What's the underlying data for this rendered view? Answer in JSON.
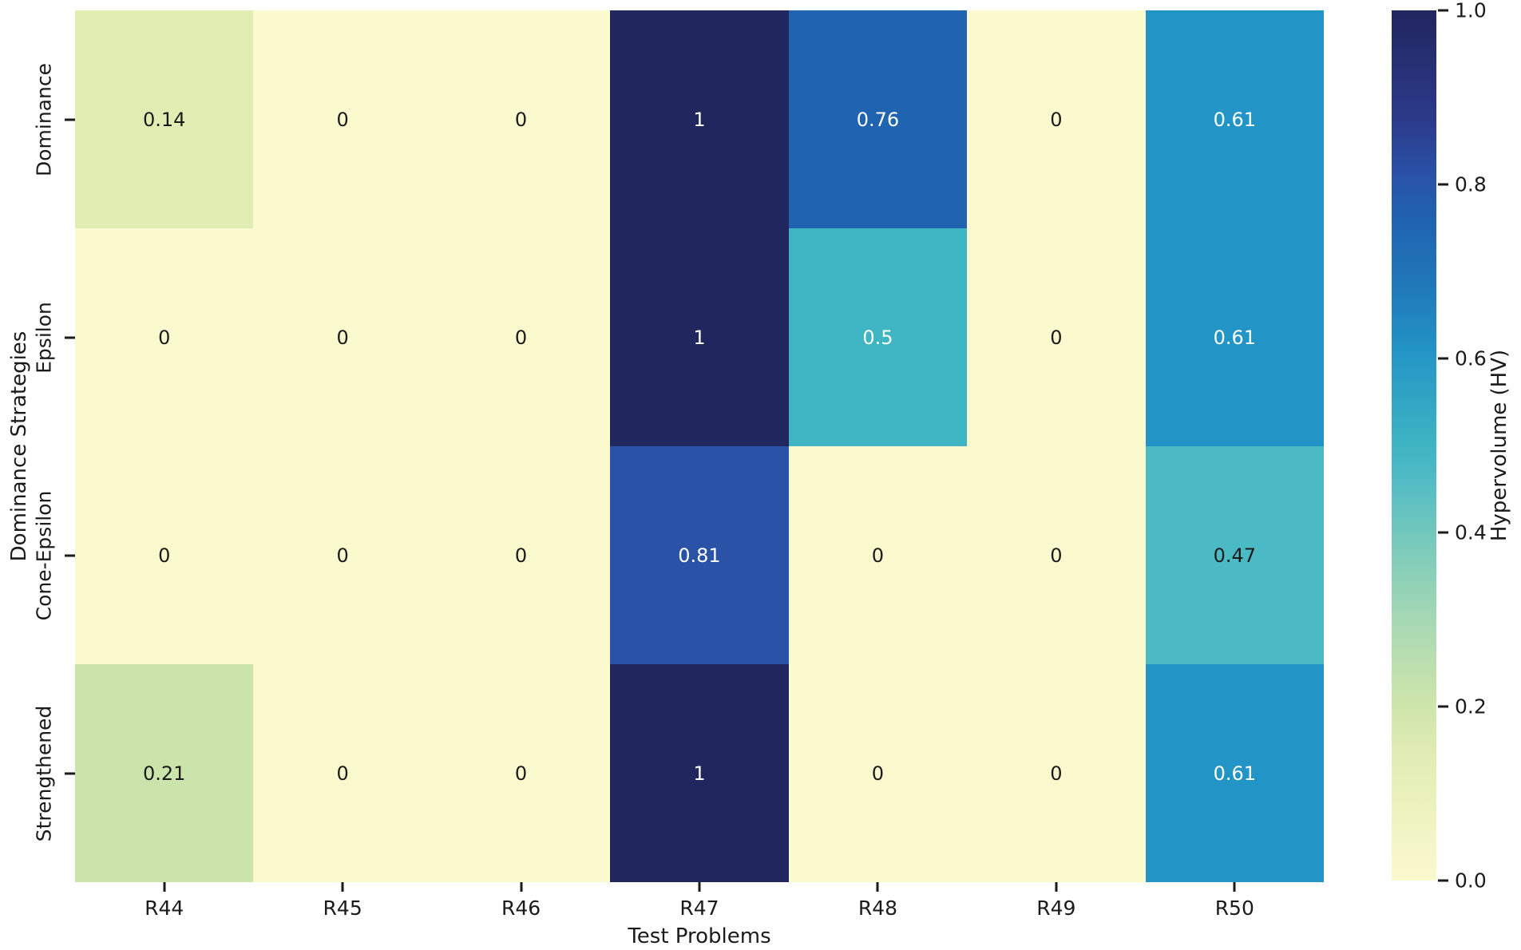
{
  "chart_data": {
    "type": "heatmap",
    "title": "",
    "xlabel": "Test Problems",
    "ylabel": "Dominance Strategies",
    "colorbar_label": "Hypervolume (HV)",
    "columns": [
      "R44",
      "R45",
      "R46",
      "R47",
      "R48",
      "R49",
      "R50"
    ],
    "rows": [
      "Dominance",
      "Epsilon",
      "Cone-Epsilon",
      "Strengthened"
    ],
    "values": [
      [
        0.14,
        0,
        0,
        1,
        0.76,
        0,
        0.61
      ],
      [
        0,
        0,
        0,
        1,
        0.5,
        0,
        0.61
      ],
      [
        0,
        0,
        0,
        0.81,
        0,
        0,
        0.47
      ],
      [
        0.21,
        0,
        0,
        1,
        0,
        0,
        0.61
      ]
    ],
    "vmin": 0,
    "vmax": 1,
    "colorbar_ticks": [
      {
        "label": "1.0",
        "value": 1.0
      },
      {
        "label": "0.8",
        "value": 0.8
      },
      {
        "label": "0.6",
        "value": 0.6
      },
      {
        "label": "0.4",
        "value": 0.4
      },
      {
        "label": "0.2",
        "value": 0.2
      },
      {
        "label": "0.0",
        "value": 0.0
      }
    ],
    "colormap": [
      {
        "v": 0.0,
        "c": "#fbf9ce"
      },
      {
        "v": 0.14,
        "c": "#e2edb4"
      },
      {
        "v": 0.21,
        "c": "#cbe4ab"
      },
      {
        "v": 0.3,
        "c": "#a6d8b4"
      },
      {
        "v": 0.375,
        "c": "#7fccba"
      },
      {
        "v": 0.47,
        "c": "#4cbac5"
      },
      {
        "v": 0.5,
        "c": "#3fb4c2"
      },
      {
        "v": 0.61,
        "c": "#2394c6"
      },
      {
        "v": 0.68,
        "c": "#2079b9"
      },
      {
        "v": 0.76,
        "c": "#2063b0"
      },
      {
        "v": 0.81,
        "c": "#2a52a7"
      },
      {
        "v": 0.875,
        "c": "#2c3a8a"
      },
      {
        "v": 1.0,
        "c": "#20265e"
      }
    ],
    "text_color_threshold": 0.5,
    "annotation_color_dark": "#1b1b1b",
    "annotation_color_light": "#ffffff",
    "legend_position": "colorbar-right",
    "grid": false
  }
}
